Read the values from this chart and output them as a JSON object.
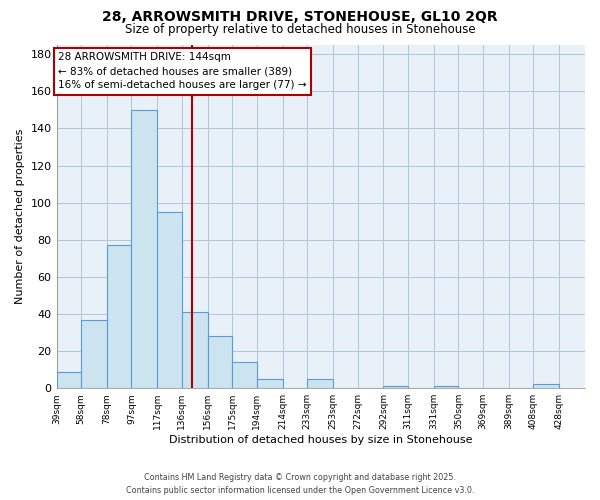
{
  "title": "28, ARROWSMITH DRIVE, STONEHOUSE, GL10 2QR",
  "subtitle": "Size of property relative to detached houses in Stonehouse",
  "xlabel": "Distribution of detached houses by size in Stonehouse",
  "ylabel": "Number of detached properties",
  "bins": [
    39,
    58,
    78,
    97,
    117,
    136,
    156,
    175,
    194,
    214,
    233,
    253,
    272,
    292,
    311,
    331,
    350,
    369,
    389,
    408,
    428
  ],
  "bin_labels": [
    "39sqm",
    "58sqm",
    "78sqm",
    "97sqm",
    "117sqm",
    "136sqm",
    "156sqm",
    "175sqm",
    "194sqm",
    "214sqm",
    "233sqm",
    "253sqm",
    "272sqm",
    "292sqm",
    "311sqm",
    "331sqm",
    "350sqm",
    "369sqm",
    "389sqm",
    "408sqm",
    "428sqm"
  ],
  "counts": [
    9,
    37,
    77,
    150,
    95,
    41,
    28,
    14,
    5,
    0,
    5,
    0,
    0,
    1,
    0,
    1,
    0,
    0,
    0,
    2
  ],
  "bar_color": "#cce4f0",
  "bar_edge_color": "#5b9bd5",
  "vline_x": 144,
  "vline_color": "#aa0000",
  "annotation_title": "28 ARROWSMITH DRIVE: 144sqm",
  "annotation_line1": "← 83% of detached houses are smaller (389)",
  "annotation_line2": "16% of semi-detached houses are larger (77) →",
  "annotation_box_color": "#ffffff",
  "annotation_box_edge": "#aa0000",
  "ylim": [
    0,
    185
  ],
  "yticks": [
    0,
    20,
    40,
    60,
    80,
    100,
    120,
    140,
    160,
    180
  ],
  "plot_bg_color": "#e8f0f8",
  "background_color": "#ffffff",
  "grid_color": "#b0c4de",
  "footer_line1": "Contains HM Land Registry data © Crown copyright and database right 2025.",
  "footer_line2": "Contains public sector information licensed under the Open Government Licence v3.0."
}
